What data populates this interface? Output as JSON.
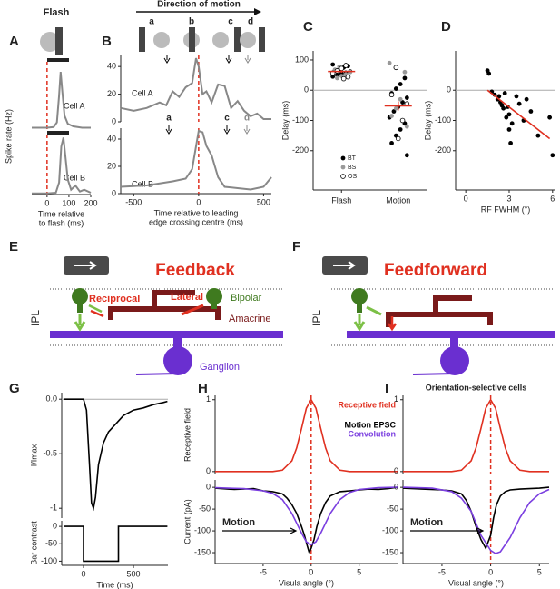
{
  "figure": {
    "panels": [
      "A",
      "B",
      "C",
      "D",
      "E",
      "F",
      "G",
      "H",
      "I"
    ],
    "flash_title": "Flash",
    "spike_rate_label": "Spike rate (Hz)",
    "direction": "Direction of motion",
    "icon_labels": [
      "a",
      "b",
      "c",
      "d"
    ],
    "plot_labels": [
      "a",
      "c",
      "d"
    ]
  },
  "diagrams": {
    "E": {
      "title": "Feedback",
      "reciprocal": "Reciprocal",
      "lateral": "Lateral",
      "bipolar": "Bipolar",
      "amacrine": "Amacrine",
      "ganglion": "Ganglion",
      "layer": "IPL"
    },
    "F": {
      "title": "Feedforward",
      "layer": "IPL"
    }
  },
  "chart_data": [
    {
      "type": "line",
      "label": "Cell A",
      "xlim": [
        -70,
        200
      ],
      "ylim": [
        0,
        100
      ],
      "zero_vline": "#e03020",
      "series": [
        {
          "color": "#888888",
          "x": [
            -70,
            0,
            30,
            45,
            55,
            62,
            70,
            80,
            95,
            120,
            160,
            200
          ],
          "values": [
            2,
            2,
            3,
            10,
            50,
            85,
            55,
            20,
            8,
            4,
            2,
            2
          ]
        }
      ]
    },
    {
      "type": "line",
      "label": "Cell B",
      "xlim": [
        -70,
        200
      ],
      "ylim": [
        0,
        100
      ],
      "zero_vline": "#e03020",
      "xticks": [
        0,
        100,
        200
      ],
      "xlabel": [
        "Time relative",
        "to flash (ms)"
      ],
      "series": [
        {
          "color": "#888888",
          "x": [
            -70,
            0,
            40,
            55,
            65,
            75,
            85,
            95,
            110,
            130,
            150,
            170,
            200
          ],
          "values": [
            2,
            2,
            3,
            20,
            80,
            95,
            60,
            25,
            8,
            15,
            5,
            8,
            3
          ]
        }
      ]
    },
    {
      "type": "line",
      "label": "Cell A",
      "xlim": [
        -600,
        560
      ],
      "ylim": [
        0,
        48
      ],
      "yticks": [
        0,
        20,
        40
      ],
      "zero_vline": "#e03020",
      "series": [
        {
          "color": "#888888",
          "x": [
            -600,
            -500,
            -400,
            -300,
            -250,
            -200,
            -150,
            -100,
            -50,
            -20,
            0,
            30,
            60,
            100,
            150,
            200,
            250,
            300,
            350,
            400,
            450,
            500,
            560
          ],
          "values": [
            10,
            8,
            10,
            14,
            12,
            22,
            18,
            25,
            28,
            46,
            40,
            20,
            22,
            14,
            27,
            26,
            10,
            15,
            8,
            4,
            6,
            2,
            2
          ]
        }
      ]
    },
    {
      "type": "line",
      "label": "Cell B",
      "xlim": [
        -600,
        560
      ],
      "ylim": [
        0,
        48
      ],
      "yticks": [
        0,
        20,
        40
      ],
      "zero_vline": "#e03020",
      "xticks": [
        -500,
        0,
        500
      ],
      "xlabel": [
        "Time relative to leading",
        "edge crossing centre (ms)"
      ],
      "series": [
        {
          "color": "#888888",
          "x": [
            -600,
            -400,
            -200,
            -100,
            -50,
            0,
            30,
            60,
            100,
            150,
            200,
            300,
            400,
            500,
            560
          ],
          "values": [
            5,
            6,
            9,
            11,
            18,
            46,
            45,
            35,
            28,
            12,
            5,
            4,
            3,
            5,
            12
          ]
        }
      ]
    },
    {
      "type": "strip",
      "categories": [
        "Flash",
        "Motion"
      ],
      "ylim": [
        -330,
        130
      ],
      "yticks": [
        100,
        0,
        -100,
        -200
      ],
      "ylabel": "Delay (ms)",
      "zero_line": true,
      "means": [
        62,
        -52
      ],
      "sem": [
        4,
        15
      ],
      "mean_color": "#e03020",
      "series": [
        {
          "name": "BT",
          "marker": "filled",
          "color": "#000000",
          "x": [
            "Flash",
            "Flash",
            "Flash",
            "Flash",
            "Flash",
            "Flash",
            "Flash",
            "Flash",
            "Flash",
            "Flash",
            "Motion",
            "Motion",
            "Motion",
            "Motion",
            "Motion",
            "Motion",
            "Motion",
            "Motion",
            "Motion",
            "Motion",
            "Motion",
            "Motion",
            "Motion",
            "Motion"
          ],
          "values": [
            85,
            80,
            75,
            70,
            65,
            62,
            58,
            55,
            50,
            45,
            40,
            20,
            5,
            -10,
            -25,
            -40,
            -55,
            -70,
            -90,
            -110,
            -130,
            -150,
            -175,
            -215
          ]
        },
        {
          "name": "BS",
          "marker": "filled",
          "color": "#999999",
          "x": [
            "Flash",
            "Flash",
            "Flash",
            "Flash",
            "Flash",
            "Flash",
            "Motion",
            "Motion",
            "Motion",
            "Motion",
            "Motion",
            "Motion"
          ],
          "values": [
            78,
            68,
            60,
            52,
            47,
            40,
            90,
            60,
            -30,
            -60,
            -85,
            -120
          ]
        },
        {
          "name": "OS",
          "marker": "open",
          "color": "#000000",
          "x": [
            "Flash",
            "Flash",
            "Flash",
            "Flash",
            "Flash",
            "Flash",
            "Motion",
            "Motion",
            "Motion",
            "Motion",
            "Motion"
          ],
          "values": [
            82,
            72,
            64,
            57,
            44,
            38,
            75,
            -15,
            -45,
            -100,
            -160
          ]
        }
      ]
    },
    {
      "type": "scatter",
      "xlim": [
        -0.7,
        6.2
      ],
      "ylim": [
        -330,
        130
      ],
      "yticks": [
        0,
        -100,
        -200
      ],
      "xticks": [
        0,
        3,
        6
      ],
      "xlabel": [
        "RF FWHM (°)"
      ],
      "ylabel": "Delay (ms)",
      "zero_line": true,
      "series": [
        {
          "style": "dots",
          "marker": "filled",
          "color": "#000000",
          "x": [
            1.5,
            1.6,
            1.8,
            2.0,
            2.2,
            2.3,
            2.4,
            2.5,
            2.6,
            2.7,
            2.8,
            2.9,
            3.0,
            3.0,
            3.1,
            3.2,
            3.5,
            3.7,
            4.0,
            4.2,
            4.5,
            5.0,
            5.8,
            6.0
          ],
          "values": [
            65,
            55,
            -5,
            -15,
            -30,
            -20,
            -40,
            -50,
            -60,
            -10,
            -90,
            -55,
            -80,
            -130,
            -175,
            -110,
            -20,
            -45,
            -100,
            -30,
            -70,
            -150,
            -90,
            -215
          ]
        },
        {
          "style": "line",
          "color": "#e03020",
          "x": [
            1.5,
            5.8
          ],
          "values": [
            0,
            -160
          ]
        }
      ]
    },
    {
      "type": "line",
      "xlim": [
        -218,
        845
      ],
      "ylim": [
        -1.09,
        0.06
      ],
      "yticks": [
        {
          "value": 0,
          "label": "0.0"
        },
        -0.5,
        -1
      ],
      "ylabel": "I/Imax",
      "zero_line": true,
      "series": [
        {
          "style": "line",
          "color": "#000000",
          "x": [
            -200,
            -100,
            0,
            30,
            60,
            80,
            100,
            120,
            150,
            200,
            250,
            300,
            350,
            400,
            500,
            600,
            700,
            800,
            840
          ],
          "values": [
            0,
            0,
            0,
            -0.1,
            -0.6,
            -0.95,
            -1.0,
            -0.9,
            -0.6,
            -0.4,
            -0.3,
            -0.25,
            -0.2,
            -0.15,
            -0.1,
            -0.08,
            -0.05,
            -0.03,
            -0.02
          ]
        }
      ]
    },
    {
      "type": "line",
      "xlim": [
        -218,
        845
      ],
      "ylim": [
        -112,
        16
      ],
      "yticks": [
        0,
        -50,
        -100
      ],
      "xticks": [
        0,
        500
      ],
      "xlabel": [
        "Time (ms)"
      ],
      "ylabel": "Bar contrast",
      "series": [
        {
          "style": "line",
          "color": "#000000",
          "x": [
            -200,
            0,
            0,
            350,
            350,
            840
          ],
          "values": [
            0,
            0,
            -100,
            -100,
            0,
            0
          ]
        }
      ]
    },
    {
      "type": "line",
      "xlim": [
        -10,
        9
      ],
      "ylim": [
        -0.04,
        1.06
      ],
      "yticks": [
        0,
        1
      ],
      "ylabel": "Receptive field",
      "zero_vline": "#e03020",
      "series": [
        {
          "style": "line",
          "name": "Receptive field",
          "color": "#e03020",
          "x": [
            -10,
            -4,
            -3,
            -2,
            -1.5,
            -1,
            -0.5,
            0,
            0.5,
            1,
            1.5,
            2,
            3,
            4,
            9
          ],
          "values": [
            0,
            0,
            0.02,
            0.15,
            0.33,
            0.6,
            0.88,
            1,
            0.88,
            0.6,
            0.33,
            0.15,
            0.02,
            0,
            0
          ]
        }
      ]
    },
    {
      "type": "line",
      "xlim": [
        -10,
        9
      ],
      "ylim": [
        -175,
        17
      ],
      "yticks": [
        0,
        -50,
        -100,
        -150
      ],
      "xticks": [
        -5,
        0,
        5
      ],
      "xlabel": [
        "Visula angle (°)"
      ],
      "ylabel": "Current (pA)",
      "zero_vline": "#e03020",
      "annotation": "Motion",
      "series": [
        {
          "style": "line",
          "name": "Motion EPSC",
          "color": "#000000",
          "x": [
            -10,
            -8,
            -6,
            -5,
            -4,
            -3,
            -2.5,
            -2,
            -1.5,
            -1,
            -0.7,
            -0.4,
            -0.2,
            0,
            0.3,
            0.6,
            1,
            1.5,
            2,
            3,
            4,
            5,
            6,
            7,
            8,
            9
          ],
          "values": [
            -2,
            -5,
            -3,
            -8,
            -10,
            -15,
            -25,
            -40,
            -60,
            -90,
            -110,
            -135,
            -150,
            -140,
            -120,
            -90,
            -60,
            -35,
            -20,
            -10,
            -8,
            -6,
            -4,
            -5,
            -3,
            0
          ]
        },
        {
          "style": "line",
          "name": "Convolution",
          "color": "#7b3fe0",
          "x": [
            -10,
            -7,
            -5,
            -4,
            -3,
            -2,
            -1,
            -0.5,
            0,
            0.5,
            1,
            2,
            3,
            4,
            5,
            7,
            9
          ],
          "values": [
            -1,
            -3,
            -8,
            -14,
            -28,
            -60,
            -105,
            -125,
            -132,
            -125,
            -105,
            -60,
            -28,
            -12,
            -5,
            -1,
            0
          ]
        }
      ]
    },
    {
      "type": "line",
      "title": "Orientation-selective cells",
      "xlim": [
        -9,
        6
      ],
      "ylim": [
        -0.04,
        1.06
      ],
      "yticks": [
        0,
        1
      ],
      "zero_vline": "#e03020",
      "series": [
        {
          "style": "line",
          "color": "#e03020",
          "x": [
            -9,
            -4,
            -3,
            -2,
            -1.5,
            -1,
            -0.5,
            0,
            0.5,
            1,
            1.5,
            2,
            3,
            4,
            6
          ],
          "values": [
            0,
            0,
            0.02,
            0.15,
            0.33,
            0.6,
            0.88,
            1,
            0.88,
            0.6,
            0.33,
            0.15,
            0.02,
            0,
            0
          ]
        }
      ]
    },
    {
      "type": "line",
      "xlim": [
        -9,
        6
      ],
      "ylim": [
        -175,
        17
      ],
      "yticks": [
        0,
        -50,
        -100,
        -150
      ],
      "xticks": [
        -5,
        0,
        5
      ],
      "xlabel": [
        "Visual angle (°)"
      ],
      "zero_vline": "#e03020",
      "annotation": "Motion",
      "series": [
        {
          "style": "line",
          "color": "#000000",
          "x": [
            -9,
            -7,
            -5,
            -4,
            -3,
            -2.5,
            -2,
            -1.5,
            -1,
            -0.5,
            0,
            0.3,
            0.6,
            1,
            1.5,
            2,
            3,
            4,
            5,
            6
          ],
          "values": [
            -2,
            -4,
            -6,
            -8,
            -15,
            -30,
            -55,
            -90,
            -120,
            -140,
            -110,
            -70,
            -40,
            -20,
            -10,
            -6,
            -4,
            -3,
            -2,
            0
          ]
        },
        {
          "style": "line",
          "color": "#7b3fe0",
          "x": [
            -9,
            -6,
            -4,
            -3,
            -2,
            -1,
            0,
            0.5,
            1,
            2,
            3,
            4,
            5,
            6
          ],
          "values": [
            0,
            -2,
            -10,
            -25,
            -55,
            -110,
            -145,
            -152,
            -148,
            -115,
            -70,
            -35,
            -15,
            -5
          ]
        }
      ]
    }
  ]
}
